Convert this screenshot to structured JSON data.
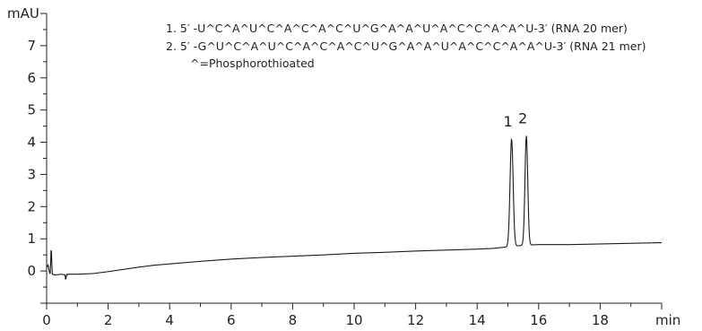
{
  "chart_data": {
    "type": "line",
    "ylabel": "mAU",
    "xlabel": "min",
    "xlim": [
      0,
      20
    ],
    "ylim": [
      -1,
      8
    ],
    "x_ticks": [
      0,
      2,
      4,
      6,
      8,
      10,
      12,
      14,
      16,
      18
    ],
    "y_ticks": [
      0,
      1,
      2,
      3,
      4,
      5,
      6,
      7
    ],
    "grid": false,
    "legend_position": "top-right",
    "legend": [
      "1.  5′ -U^C^A^U^C^A^C^A^C^U^G^A^A^U^A^C^C^A^A^U-3′ (RNA 20 mer)",
      "2.  5′ -G^U^C^A^U^C^A^C^A^C^U^G^A^A^U^A^C^C^A^A^U-3′ (RNA 21 mer)",
      "^=Phosphorothioated"
    ],
    "peaks": [
      {
        "label": "1",
        "x": 15.12,
        "y": 4.1,
        "width": 0.05
      },
      {
        "label": "2",
        "x": 15.6,
        "y": 4.2,
        "width": 0.045
      }
    ],
    "series": [
      {
        "x": [
          0,
          0.05,
          0.08,
          0.12,
          0.15,
          0.18,
          0.2,
          0.25,
          0.3,
          0.5,
          0.6,
          0.62,
          0.65,
          0.68,
          0.7,
          1.0,
          1.5,
          2.0,
          2.5,
          3.0,
          3.5,
          4.0,
          5.0,
          6.0,
          7.0,
          8.0,
          9.0,
          10.0,
          11.0,
          12.0,
          13.0,
          14.0,
          14.5,
          15.0,
          15.5,
          16.0,
          16.5,
          17.0,
          18.0,
          19.0,
          20.0
        ],
        "y": [
          0.1,
          0.2,
          0.0,
          -0.1,
          0.85,
          -0.1,
          -0.1,
          -0.12,
          -0.12,
          -0.1,
          -0.12,
          -0.3,
          -0.1,
          -0.12,
          -0.1,
          -0.1,
          -0.08,
          -0.02,
          0.05,
          0.12,
          0.18,
          0.22,
          0.3,
          0.37,
          0.42,
          0.46,
          0.5,
          0.55,
          0.58,
          0.62,
          0.65,
          0.68,
          0.7,
          0.75,
          0.8,
          0.82,
          0.82,
          0.82,
          0.84,
          0.86,
          0.88
        ]
      }
    ]
  }
}
